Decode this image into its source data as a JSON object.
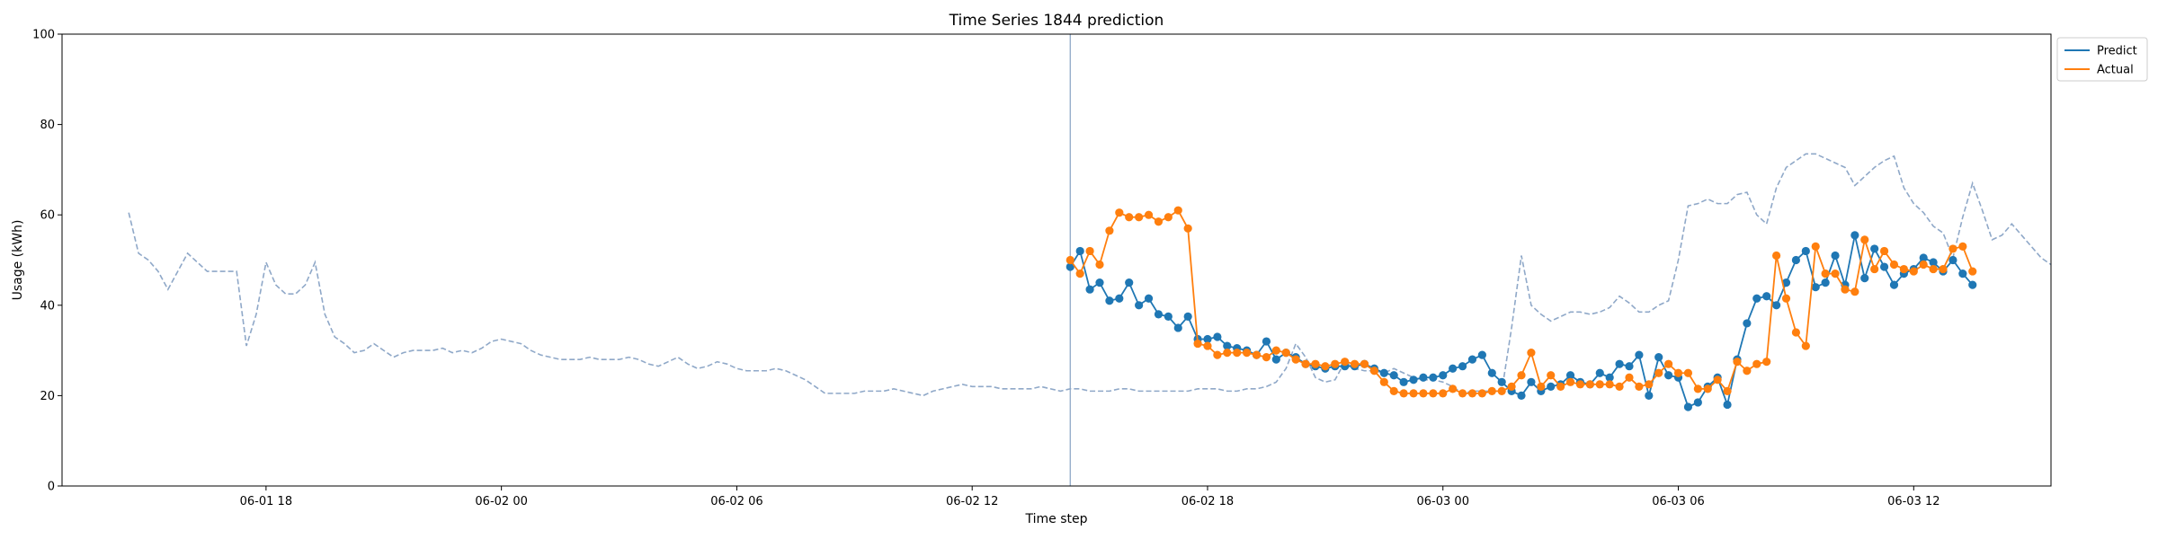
{
  "chart_data": {
    "type": "line",
    "title": "Time Series 1844 prediction",
    "xlabel": "Time step",
    "ylabel": "Usage (kWh)",
    "ylim": [
      0,
      100
    ],
    "xlim": [
      -0.86,
      15.14
    ],
    "x_unit": "hours since 06-01 14:30",
    "yticks": [
      0,
      20,
      40,
      60,
      80,
      100
    ],
    "xticks": [
      {
        "label": "06-01 18",
        "value": 3.5
      },
      {
        "label": "06-02 00",
        "value": 9.5
      },
      {
        "label": "06-02 06",
        "value": 15.5
      },
      {
        "label": "06-02 12",
        "value": 21.5
      },
      {
        "label": "06-02 18",
        "value": 27.5
      },
      {
        "label": "06-03 00",
        "value": 33.5
      },
      {
        "label": "06-03 06",
        "value": 39.5
      },
      {
        "label": "06-03 12",
        "value": 45.5
      }
    ],
    "history_start": "06-01 14:30",
    "forecast_start": "06-02 14:30",
    "step_hours": 0.25,
    "divider_label": "06-02 14:30",
    "legend": {
      "position": "upper-right-outside",
      "entries": [
        "Predict",
        "Actual"
      ]
    },
    "colors": {
      "predict": "#1f77b4",
      "actual": "#ff7f0e",
      "history": "#8fa8c8",
      "divider": "#8fa8c8"
    },
    "history": [
      60.5,
      51.5,
      50,
      47.5,
      43.5,
      47.5,
      51.5,
      49.5,
      47.5,
      47.5,
      47.5,
      47.5,
      31,
      38,
      49.5,
      44.5,
      42.5,
      42.5,
      44.5,
      49.5,
      38,
      33,
      31.5,
      29.5,
      30,
      31.5,
      30,
      28.5,
      29.5,
      30,
      30,
      30,
      30.5,
      29.5,
      30,
      29.5,
      30.5,
      32,
      32.5,
      32,
      31.5,
      30,
      29,
      28.5,
      28,
      28,
      28,
      28.5,
      28,
      28,
      28,
      28.5,
      28,
      27,
      26.5,
      27.5,
      28.5,
      27,
      26,
      26.5,
      27.5,
      27,
      26,
      25.5,
      25.5,
      25.5,
      26,
      25.5,
      24.5,
      23.5,
      22,
      20.5,
      20.5,
      20.5,
      20.5,
      21,
      21,
      21,
      21.5,
      21,
      20.5,
      20,
      21,
      21.5,
      22,
      22.5,
      22,
      22,
      22,
      21.5,
      21.5,
      21.5,
      21.5,
      22,
      21.5,
      21,
      21.5,
      21.5,
      21,
      21,
      21,
      21.5,
      21.5,
      21,
      21,
      21,
      21,
      21,
      21,
      21.5,
      21.5,
      21.5,
      21,
      21,
      21.5,
      21.5,
      22,
      23,
      26,
      31.5,
      28.5,
      24,
      23,
      23.5,
      27.5,
      26,
      25.5,
      25.5,
      25,
      26,
      25,
      24,
      23.5,
      23.5,
      23,
      22,
      20.5,
      21,
      21,
      21,
      21,
      35,
      51,
      40,
      38,
      36.5,
      37.5,
      38.5,
      38.5,
      38,
      38.5,
      39.5,
      42,
      40.5,
      38.5,
      38.5,
      40,
      41,
      50,
      62,
      62.5,
      63.5,
      62.5,
      62.5,
      64.5,
      65,
      60,
      58,
      66,
      70.5,
      72,
      73.5,
      73.5,
      72.5,
      71.5,
      70.5,
      66.5,
      68.5,
      70.5,
      72,
      73,
      66,
      62.5,
      60.5,
      57.5,
      56,
      50.5,
      59.5,
      67,
      61,
      54.5,
      55.5,
      58,
      55.5,
      53,
      50.5,
      49
    ],
    "series": [
      {
        "name": "Predict",
        "values": [
          48.5,
          52,
          43.5,
          45,
          41,
          41.5,
          45,
          40,
          41.5,
          38,
          37.5,
          35,
          37.5,
          32.5,
          32.5,
          33,
          31,
          30.5,
          30,
          29,
          32,
          28,
          29.5,
          28.5,
          27,
          26.5,
          26,
          26.5,
          26.5,
          26.5,
          27,
          26,
          25,
          24.5,
          23,
          23.5,
          24,
          24,
          24.5,
          26,
          26.5,
          28,
          29,
          25,
          23,
          21,
          20,
          23,
          21,
          22,
          22.5,
          24.5,
          23,
          22.5,
          25,
          24,
          27,
          26.5,
          29,
          20,
          28.5,
          24.5,
          24,
          17.5,
          18.5,
          22,
          24,
          18,
          28,
          36,
          41.5,
          42,
          40,
          45,
          50,
          52,
          44,
          45,
          51,
          44.5,
          55.5,
          46,
          52.5,
          48.5,
          44.5,
          47,
          48,
          50.5,
          49.5,
          47.5,
          50,
          47,
          44.5
        ]
      },
      {
        "name": "Actual",
        "values": [
          50,
          47,
          52,
          49,
          56.5,
          60.5,
          59.5,
          59.5,
          60,
          58.5,
          59.5,
          61,
          57,
          31.5,
          31,
          29,
          29.5,
          29.5,
          29.5,
          29,
          28.5,
          30,
          29.5,
          28,
          27,
          27,
          26.5,
          27,
          27.5,
          27,
          27,
          25.5,
          23,
          21,
          20.5,
          20.5,
          20.5,
          20.5,
          20.5,
          21.5,
          20.5,
          20.5,
          20.5,
          21,
          21,
          22,
          24.5,
          29.5,
          22,
          24.5,
          22,
          23,
          22.5,
          22.5,
          22.5,
          22.5,
          22,
          24,
          22,
          22.5,
          25,
          27,
          25,
          25,
          21.5,
          21.5,
          23.5,
          21,
          27.5,
          25.5,
          27,
          27.5,
          51,
          41.5,
          34,
          31,
          53,
          47,
          47,
          43.5,
          43,
          54.5,
          48,
          52,
          49,
          48,
          47.5,
          49,
          48,
          48,
          52.5,
          53,
          47.5
        ]
      }
    ]
  }
}
